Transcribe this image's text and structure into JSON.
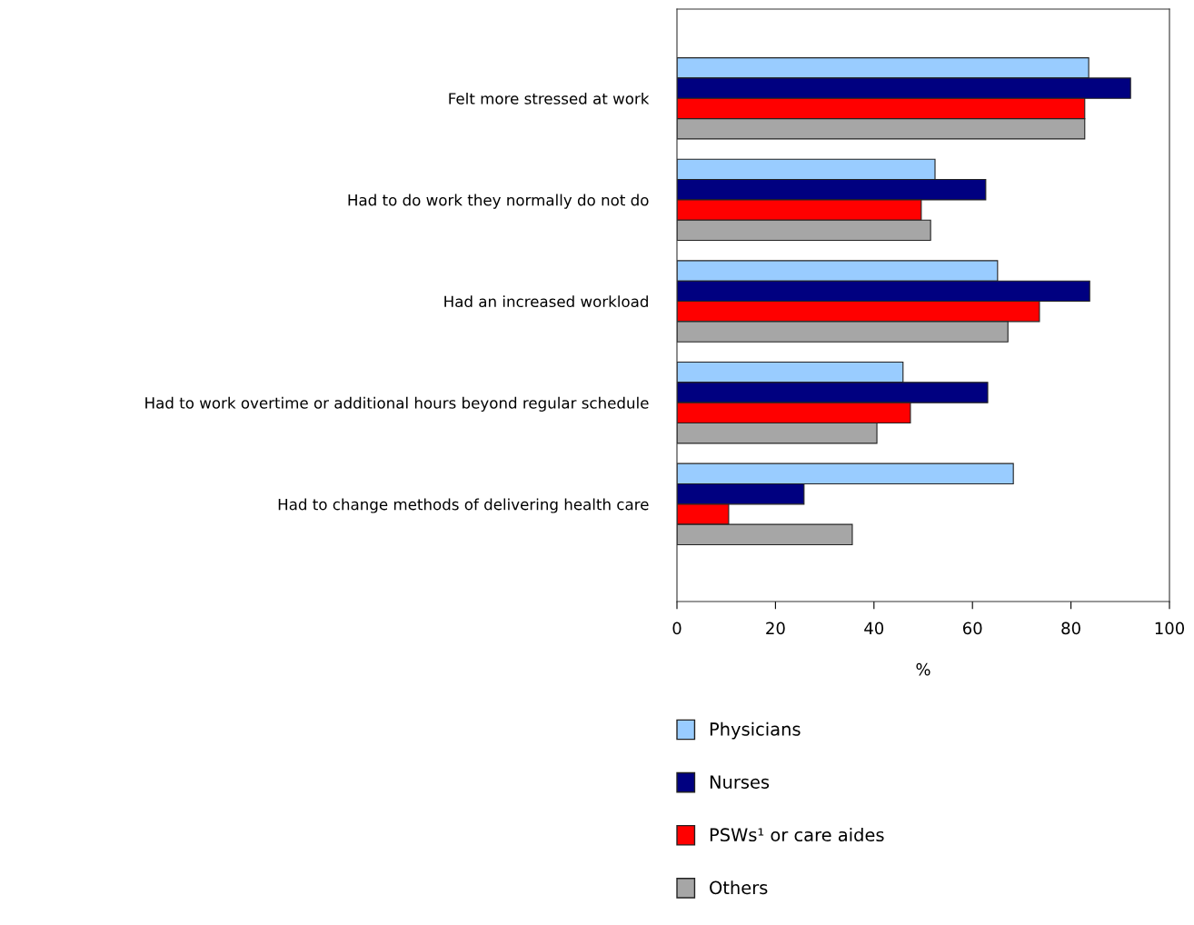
{
  "chart_data": {
    "type": "bar",
    "orientation": "horizontal",
    "xlabel": "%",
    "categories": [
      "Felt more stressed at work",
      "Had to do work they normally do not do",
      "Had an increased workload",
      "Had to work overtime or additional hours beyond regular schedule",
      "Had to change methods of delivering health care"
    ],
    "series": [
      {
        "name": "Physicians",
        "color": "#99ccff",
        "values": [
          83.6,
          52.4,
          65.1,
          45.9,
          68.3
        ]
      },
      {
        "name": "Nurses",
        "color": "#000080",
        "values": [
          92.1,
          62.7,
          83.8,
          63.1,
          25.8
        ]
      },
      {
        "name": "PSWs¹ or care aides",
        "color": "#ff0000",
        "values": [
          82.8,
          49.6,
          73.6,
          47.4,
          10.5
        ]
      },
      {
        "name": "Others",
        "color": "#a6a6a6",
        "values": [
          82.8,
          51.5,
          67.2,
          40.6,
          35.6
        ]
      }
    ],
    "xlim": [
      0,
      100
    ],
    "xticks": [
      0,
      20,
      40,
      60,
      80,
      100
    ],
    "grid": false,
    "legend": "bottom"
  }
}
